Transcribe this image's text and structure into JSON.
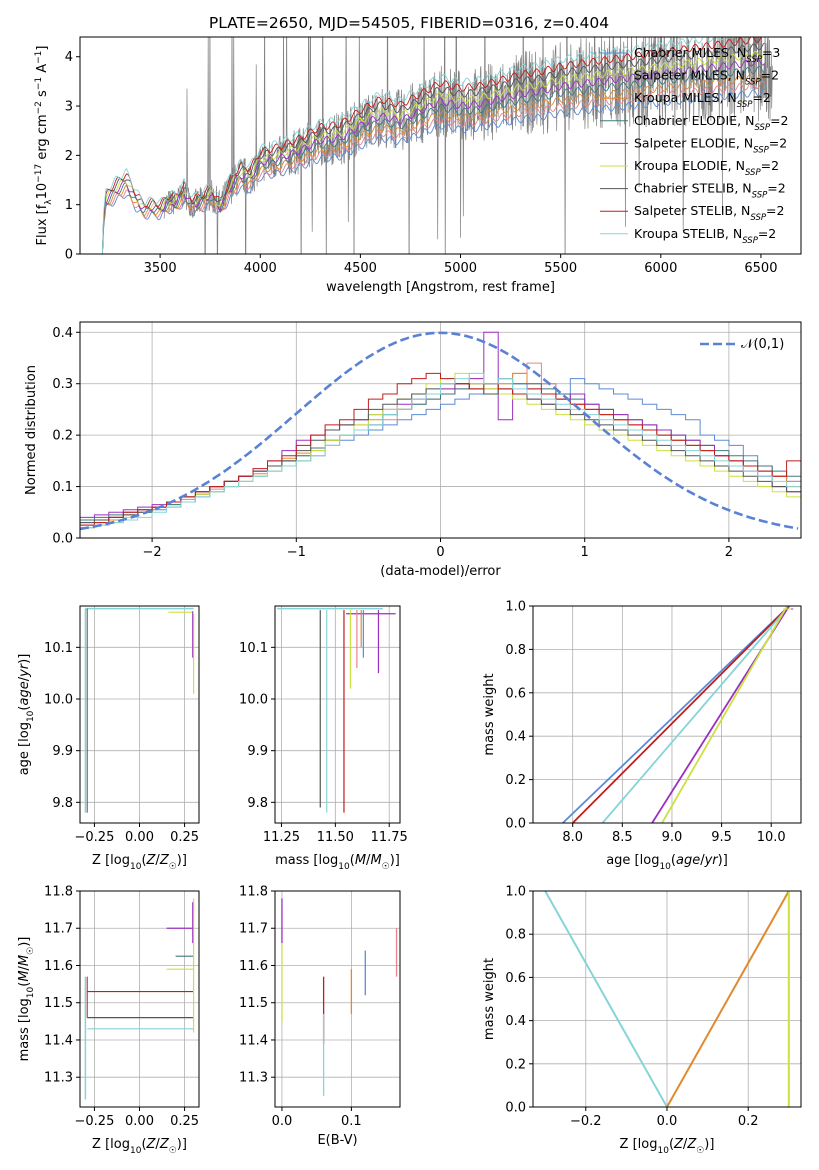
{
  "figure": {
    "title": "PLATE=2650, MJD=54505, FIBERID=0316, z=0.404"
  },
  "colors": {
    "Chabrier MILES": "#5b8bd6",
    "Salpeter MILES": "#e8838b",
    "Kroupa MILES": "#e08a2f",
    "Chabrier ELODIE": "#3f7a80",
    "Salpeter ELODIE": "#9b30c0",
    "Kroupa ELODIE": "#cde040",
    "Chabrier STELIB": "#555555",
    "Salpeter STELIB": "#c21c1c",
    "Kroupa STELIB": "#86d4d8",
    "data": "#808080",
    "gauss": "#5a82d4"
  },
  "chart_data": [
    {
      "id": "spectrum",
      "type": "line",
      "title": "PLATE=2650, MJD=54505, FIBERID=0316, z=0.404",
      "xlabel": "wavelength [Angstrom, rest frame]",
      "ylabel": "Flux [f_λ 10^-17 erg cm^-2 s^-1 A^-1]",
      "xlim": [
        3100,
        6700
      ],
      "ylim": [
        0,
        4.4
      ],
      "xticks": [
        "3500",
        "4000",
        "4500",
        "5000",
        "5500",
        "6000",
        "6500"
      ],
      "yticks": [
        "0",
        "1",
        "2",
        "3",
        "4"
      ],
      "legend_position": "top-right",
      "legend": [
        {
          "name": "Chabrier MILES",
          "nssp": "3"
        },
        {
          "name": "Salpeter MILES",
          "nssp": "2"
        },
        {
          "name": "Kroupa MILES",
          "nssp": "2"
        },
        {
          "name": "Chabrier ELODIE",
          "nssp": "2"
        },
        {
          "name": "Salpeter ELODIE",
          "nssp": "2"
        },
        {
          "name": "Kroupa ELODIE",
          "nssp": "2"
        },
        {
          "name": "Chabrier STELIB",
          "nssp": "2"
        },
        {
          "name": "Salpeter STELIB",
          "nssp": "2"
        },
        {
          "name": "Kroupa STELIB",
          "nssp": "2"
        }
      ],
      "model_continuum": {
        "x": [
          3200,
          3230,
          3280,
          3330,
          3380,
          3420,
          3460,
          3500,
          3540,
          3580,
          3620,
          3660,
          3700,
          3750,
          3800,
          3850,
          3900,
          3950,
          4000,
          4100,
          4200,
          4300,
          4400,
          4500,
          4600,
          4700,
          4800,
          4900,
          5000,
          5100,
          5200,
          5300,
          5400,
          5500,
          5600,
          5700,
          5800,
          5900,
          6000,
          6100,
          6200,
          6300,
          6400,
          6500
        ],
        "y": [
          0.0,
          1.1,
          1.3,
          1.45,
          1.1,
          0.9,
          0.95,
          0.9,
          1.05,
          1.05,
          1.25,
          1.0,
          1.05,
          1.2,
          0.95,
          1.35,
          1.6,
          1.55,
          1.85,
          1.95,
          2.1,
          2.3,
          2.35,
          2.6,
          2.8,
          2.7,
          2.9,
          3.1,
          3.0,
          3.05,
          3.15,
          3.25,
          3.3,
          3.4,
          3.45,
          3.5,
          3.55,
          3.6,
          3.65,
          3.7,
          3.75,
          3.8,
          3.85,
          3.9
        ]
      },
      "data_note_hidden": ""
    },
    {
      "id": "residual-distribution",
      "type": "histogram",
      "xlabel": "(data-model)/error",
      "ylabel": "Normed distribution",
      "xlim": [
        -2.5,
        2.5
      ],
      "ylim": [
        0,
        0.42
      ],
      "xticks": [
        "−2",
        "−1",
        "0",
        "1",
        "2"
      ],
      "yticks": [
        "0.0",
        "0.1",
        "0.2",
        "0.3",
        "0.4"
      ],
      "legend_position": "top-right",
      "gauss_label": "𝒩(0,1)",
      "bin_edges_start": -2.5,
      "bin_width": 0.1,
      "series": [
        {
          "name": "Chabrier MILES",
          "values": [
            0.03,
            0.035,
            0.04,
            0.045,
            0.05,
            0.055,
            0.06,
            0.07,
            0.08,
            0.09,
            0.1,
            0.11,
            0.12,
            0.13,
            0.14,
            0.15,
            0.16,
            0.18,
            0.19,
            0.2,
            0.21,
            0.22,
            0.23,
            0.24,
            0.25,
            0.26,
            0.27,
            0.28,
            0.29,
            0.28,
            0.3,
            0.29,
            0.3,
            0.28,
            0.31,
            0.3,
            0.29,
            0.28,
            0.27,
            0.26,
            0.25,
            0.24,
            0.23,
            0.2,
            0.19,
            0.18,
            0.16,
            0.14,
            0.12,
            0.11
          ]
        },
        {
          "name": "Salpeter MILES",
          "values": [
            0.025,
            0.03,
            0.04,
            0.05,
            0.055,
            0.06,
            0.07,
            0.075,
            0.085,
            0.095,
            0.11,
            0.12,
            0.13,
            0.14,
            0.15,
            0.16,
            0.17,
            0.19,
            0.2,
            0.21,
            0.22,
            0.23,
            0.25,
            0.26,
            0.27,
            0.28,
            0.29,
            0.3,
            0.3,
            0.31,
            0.32,
            0.34,
            0.3,
            0.27,
            0.26,
            0.25,
            0.24,
            0.23,
            0.22,
            0.21,
            0.2,
            0.19,
            0.18,
            0.17,
            0.16,
            0.15,
            0.14,
            0.13,
            0.12,
            0.11
          ]
        },
        {
          "name": "Kroupa MILES",
          "values": [
            0.02,
            0.03,
            0.035,
            0.045,
            0.05,
            0.06,
            0.065,
            0.08,
            0.09,
            0.1,
            0.11,
            0.12,
            0.125,
            0.14,
            0.155,
            0.165,
            0.175,
            0.19,
            0.2,
            0.22,
            0.23,
            0.24,
            0.25,
            0.27,
            0.28,
            0.29,
            0.3,
            0.31,
            0.29,
            0.3,
            0.32,
            0.3,
            0.28,
            0.27,
            0.26,
            0.25,
            0.24,
            0.23,
            0.22,
            0.21,
            0.2,
            0.19,
            0.18,
            0.17,
            0.16,
            0.15,
            0.14,
            0.13,
            0.12,
            0.1
          ]
        },
        {
          "name": "Chabrier ELODIE",
          "values": [
            0.035,
            0.04,
            0.045,
            0.05,
            0.055,
            0.06,
            0.065,
            0.07,
            0.085,
            0.1,
            0.11,
            0.12,
            0.13,
            0.14,
            0.15,
            0.16,
            0.175,
            0.19,
            0.2,
            0.21,
            0.22,
            0.24,
            0.25,
            0.26,
            0.27,
            0.28,
            0.29,
            0.3,
            0.3,
            0.31,
            0.3,
            0.3,
            0.29,
            0.28,
            0.27,
            0.26,
            0.25,
            0.24,
            0.23,
            0.22,
            0.21,
            0.2,
            0.19,
            0.18,
            0.17,
            0.16,
            0.15,
            0.14,
            0.13,
            0.12
          ]
        },
        {
          "name": "Salpeter ELODIE",
          "values": [
            0.04,
            0.045,
            0.05,
            0.055,
            0.06,
            0.065,
            0.07,
            0.08,
            0.09,
            0.1,
            0.11,
            0.12,
            0.13,
            0.15,
            0.17,
            0.19,
            0.2,
            0.21,
            0.22,
            0.23,
            0.24,
            0.25,
            0.26,
            0.27,
            0.28,
            0.29,
            0.3,
            0.31,
            0.4,
            0.23,
            0.28,
            0.27,
            0.26,
            0.27,
            0.28,
            0.26,
            0.25,
            0.24,
            0.23,
            0.22,
            0.21,
            0.2,
            0.19,
            0.18,
            0.16,
            0.15,
            0.13,
            0.12,
            0.1,
            0.09
          ]
        },
        {
          "name": "Kroupa ELODIE",
          "values": [
            0.02,
            0.025,
            0.03,
            0.04,
            0.05,
            0.06,
            0.07,
            0.08,
            0.085,
            0.09,
            0.1,
            0.11,
            0.12,
            0.13,
            0.14,
            0.15,
            0.17,
            0.19,
            0.2,
            0.22,
            0.24,
            0.25,
            0.27,
            0.28,
            0.3,
            0.31,
            0.32,
            0.3,
            0.29,
            0.28,
            0.27,
            0.26,
            0.25,
            0.24,
            0.23,
            0.22,
            0.21,
            0.2,
            0.19,
            0.18,
            0.17,
            0.16,
            0.15,
            0.14,
            0.13,
            0.12,
            0.11,
            0.1,
            0.09,
            0.08
          ]
        },
        {
          "name": "Chabrier STELIB",
          "values": [
            0.03,
            0.035,
            0.04,
            0.045,
            0.05,
            0.06,
            0.07,
            0.08,
            0.09,
            0.1,
            0.11,
            0.12,
            0.13,
            0.14,
            0.15,
            0.17,
            0.19,
            0.21,
            0.22,
            0.23,
            0.25,
            0.26,
            0.27,
            0.28,
            0.29,
            0.3,
            0.3,
            0.29,
            0.28,
            0.29,
            0.28,
            0.27,
            0.26,
            0.25,
            0.24,
            0.23,
            0.22,
            0.21,
            0.2,
            0.19,
            0.18,
            0.17,
            0.16,
            0.15,
            0.14,
            0.13,
            0.12,
            0.11,
            0.1,
            0.09
          ]
        },
        {
          "name": "Salpeter STELIB",
          "values": [
            0.025,
            0.03,
            0.04,
            0.05,
            0.055,
            0.06,
            0.07,
            0.08,
            0.09,
            0.1,
            0.11,
            0.12,
            0.135,
            0.15,
            0.16,
            0.18,
            0.2,
            0.22,
            0.23,
            0.25,
            0.27,
            0.28,
            0.3,
            0.31,
            0.32,
            0.31,
            0.3,
            0.29,
            0.3,
            0.29,
            0.28,
            0.29,
            0.28,
            0.27,
            0.26,
            0.25,
            0.24,
            0.23,
            0.22,
            0.21,
            0.2,
            0.19,
            0.18,
            0.17,
            0.16,
            0.15,
            0.14,
            0.13,
            0.12,
            0.15
          ]
        },
        {
          "name": "Kroupa STELIB",
          "values": [
            0.02,
            0.025,
            0.03,
            0.035,
            0.04,
            0.05,
            0.06,
            0.07,
            0.08,
            0.09,
            0.1,
            0.11,
            0.12,
            0.13,
            0.14,
            0.15,
            0.16,
            0.18,
            0.2,
            0.21,
            0.22,
            0.24,
            0.25,
            0.27,
            0.28,
            0.3,
            0.31,
            0.32,
            0.3,
            0.31,
            0.29,
            0.28,
            0.27,
            0.26,
            0.25,
            0.24,
            0.23,
            0.22,
            0.21,
            0.2,
            0.19,
            0.18,
            0.17,
            0.16,
            0.15,
            0.14,
            0.13,
            0.12,
            0.11,
            0.1
          ]
        }
      ]
    },
    {
      "id": "age-vs-metallicity",
      "type": "step",
      "xlabel": "Z [log10(Z/Z☉)]",
      "ylabel": "age [log10(age/yr)]",
      "xlim": [
        -0.33,
        0.33
      ],
      "ylim": [
        9.76,
        10.18
      ],
      "xticks": [
        "−0.25",
        "0.00",
        "0.25"
      ],
      "yticks": [
        "9.8",
        "9.9",
        "10.0",
        "10.1"
      ],
      "series": [
        {
          "name": "Chabrier MILES",
          "z": [
            -0.3,
            0.3
          ],
          "age": [
            10.175,
            10.175
          ]
        },
        {
          "name": "Salpeter ELODIE",
          "z": [
            0.3,
            0.3
          ],
          "age": [
            10.17,
            10.08
          ]
        },
        {
          "name": "Kroupa ELODIE",
          "z": [
            0.3,
            0.3
          ],
          "age": [
            10.165,
            10.01
          ]
        },
        {
          "name": "Kroupa STELIB",
          "z": [
            -0.3,
            -0.3
          ],
          "age": [
            10.175,
            9.78
          ]
        }
      ]
    },
    {
      "id": "age-vs-mass",
      "type": "step",
      "xlabel": "mass [log10(M/M☉)]",
      "ylabel": "",
      "xlim": [
        11.22,
        11.8
      ],
      "ylim": [
        9.76,
        10.18
      ],
      "xticks": [
        "11.25",
        "11.50",
        "11.75"
      ],
      "yticks": [
        "9.8",
        "9.9",
        "10.0",
        "10.1"
      ],
      "series": [
        {
          "name": "Kroupa STELIB",
          "mass": 11.46,
          "age_low": 9.78
        },
        {
          "name": "Chabrier STELIB",
          "mass": 11.43,
          "age_low": 9.79
        },
        {
          "name": "Salpeter STELIB",
          "mass": 11.54,
          "age_low": 9.78
        },
        {
          "name": "Kroupa ELODIE",
          "mass": 11.57,
          "age_low": 10.02
        },
        {
          "name": "Chabrier MILES",
          "mass": 11.63,
          "age_low": 10.08
        },
        {
          "name": "Kroupa MILES",
          "mass": 11.62,
          "age_low": 10.1
        },
        {
          "name": "Salpeter MILES",
          "mass": 11.6,
          "age_low": 10.06
        },
        {
          "name": "Salpeter ELODIE",
          "mass": 11.7,
          "age_low": 10.05
        }
      ]
    },
    {
      "id": "cumulative-mass-weight-age",
      "type": "line",
      "xlabel": "age [log10(age/yr)]",
      "ylabel": "mass weight",
      "xlim": [
        7.6,
        10.3
      ],
      "ylim": [
        0,
        1
      ],
      "xticks": [
        "8.0",
        "8.5",
        "9.0",
        "9.5",
        "10.0"
      ],
      "yticks": [
        "0.0",
        "0.2",
        "0.4",
        "0.6",
        "0.8",
        "1.0"
      ],
      "series": [
        {
          "name": "Chabrier MILES",
          "x": [
            7.9,
            10.18
          ],
          "y": [
            0,
            1
          ]
        },
        {
          "name": "Salpeter STELIB",
          "x": [
            8.0,
            10.18
          ],
          "y": [
            0,
            1
          ]
        },
        {
          "name": "Kroupa STELIB",
          "x": [
            8.3,
            10.18
          ],
          "y": [
            0,
            1
          ]
        },
        {
          "name": "Salpeter ELODIE",
          "x": [
            8.8,
            10.18
          ],
          "y": [
            0,
            1
          ]
        },
        {
          "name": "Kroupa ELODIE",
          "x": [
            8.9,
            10.16
          ],
          "y": [
            0,
            1
          ]
        }
      ]
    },
    {
      "id": "mass-vs-metallicity",
      "type": "step",
      "xlabel": "Z [log10(Z/Z☉)]",
      "ylabel": "mass [log10(M/M☉)]",
      "xlim": [
        -0.33,
        0.33
      ],
      "ylim": [
        11.22,
        11.8
      ],
      "xticks": [
        "−0.25",
        "0.00",
        "0.25"
      ],
      "yticks": [
        "11.3",
        "11.4",
        "11.5",
        "11.6",
        "11.7",
        "11.8"
      ],
      "series": [
        {
          "name": "Salpeter STELIB",
          "mass": 11.53
        },
        {
          "name": "Chabrier STELIB",
          "mass": 11.46
        },
        {
          "name": "Kroupa STELIB",
          "mass": 11.43
        },
        {
          "name": "Salpeter ELODIE",
          "mass": 11.7
        },
        {
          "name": "Chabrier ELODIE",
          "mass": 11.62
        },
        {
          "name": "Kroupa ELODIE",
          "mass": 11.59
        }
      ]
    },
    {
      "id": "mass-vs-ebv",
      "type": "errorbar",
      "xlabel": "E(B-V)",
      "ylabel": "",
      "xlim": [
        -0.01,
        0.17
      ],
      "ylim": [
        11.22,
        11.8
      ],
      "xticks": [
        "0.0",
        "0.1"
      ],
      "yticks": [
        "11.3",
        "11.4",
        "11.5",
        "11.6",
        "11.7",
        "11.8"
      ],
      "series": [
        {
          "name": "Salpeter ELODIE",
          "x": 0.0,
          "y_low": 11.66,
          "y_high": 11.78
        },
        {
          "name": "Kroupa ELODIE",
          "x": 0.0,
          "y_low": 11.45,
          "y_high": 11.66
        },
        {
          "name": "Salpeter STELIB",
          "x": 0.06,
          "y_low": 11.39,
          "y_high": 11.57
        },
        {
          "name": "Kroupa STELIB",
          "x": 0.06,
          "y_low": 11.25,
          "y_high": 11.47
        },
        {
          "name": "Kroupa MILES",
          "x": 0.1,
          "y_low": 11.47,
          "y_high": 11.59
        },
        {
          "name": "Chabrier MILES",
          "x": 0.12,
          "y_low": 11.52,
          "y_high": 11.64
        },
        {
          "name": "Salpeter MILES",
          "x": 0.165,
          "y_low": 11.57,
          "y_high": 11.7
        }
      ]
    },
    {
      "id": "cumulative-mass-weight-metallicity",
      "type": "line",
      "xlabel": "Z [log10(Z/Z☉)]",
      "ylabel": "mass weight",
      "xlim": [
        -0.33,
        0.33
      ],
      "ylim": [
        0,
        1
      ],
      "xticks": [
        "−0.2",
        "0.0",
        "0.2"
      ],
      "yticks": [
        "0.0",
        "0.2",
        "0.4",
        "0.6",
        "0.8",
        "1.0"
      ],
      "series": [
        {
          "name": "Kroupa STELIB",
          "x": [
            -0.3,
            0.0
          ],
          "y": [
            1,
            0
          ]
        },
        {
          "name": "Kroupa MILES",
          "x": [
            0.0,
            0.3
          ],
          "y": [
            0,
            1
          ]
        },
        {
          "name": "Kroupa ELODIE",
          "x": [
            0.3,
            0.3
          ],
          "y": [
            0,
            1
          ]
        }
      ]
    }
  ]
}
